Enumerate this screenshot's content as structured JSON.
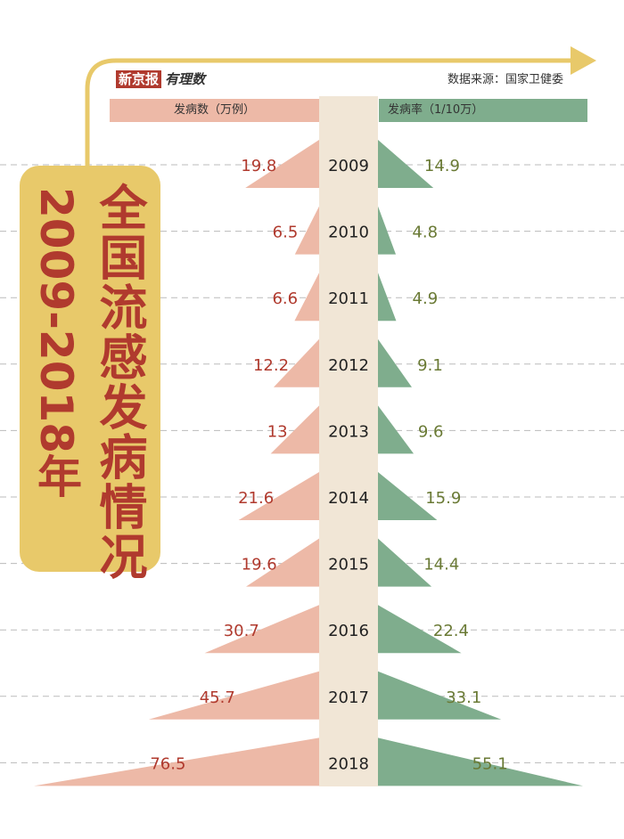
{
  "brand": {
    "name": "新京报",
    "subname": "有理数"
  },
  "source": "数据来源：国家卫健委",
  "headers": {
    "left": "发病数（万例）",
    "right": "发病率（1/10万）"
  },
  "title": {
    "main": "全国流感发病情况",
    "years": "2009-2018年"
  },
  "colors": {
    "cases": "#EDB9A7",
    "rate": "#7FAD8D",
    "spine": "#F1E6D6",
    "title_bg": "#E8C96A",
    "title_text": "#B03A2E",
    "cases_label": "#B03A2E",
    "rate_label": "#6A7A35"
  },
  "chart_data": {
    "type": "bar",
    "categories": [
      "2009",
      "2010",
      "2011",
      "2012",
      "2013",
      "2014",
      "2015",
      "2016",
      "2017",
      "2018"
    ],
    "series": [
      {
        "name": "发病数（万例）",
        "values": [
          19.8,
          6.5,
          6.6,
          12.2,
          13,
          21.6,
          19.6,
          30.7,
          45.7,
          76.5
        ]
      },
      {
        "name": "发病率（1/10万）",
        "values": [
          14.9,
          4.8,
          4.9,
          9.1,
          9.6,
          15.9,
          14.4,
          22.4,
          33.1,
          55.1
        ]
      }
    ],
    "value_labels": {
      "cases": [
        "19.8",
        "6.5",
        "6.6",
        "12.2",
        "13",
        "21.6",
        "19.6",
        "30.7",
        "45.7",
        "76.5"
      ],
      "rate": [
        "14.9",
        "4.8",
        "4.9",
        "9.1",
        "9.6",
        "15.9",
        "14.4",
        "22.4",
        "33.1",
        "55.1"
      ]
    }
  }
}
